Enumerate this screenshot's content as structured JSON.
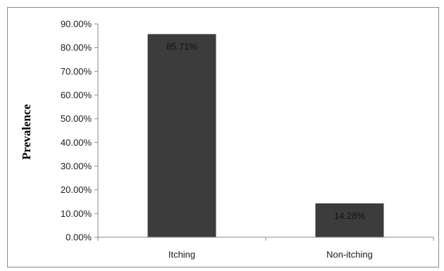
{
  "chart_data": {
    "type": "bar",
    "title": "",
    "xlabel": "",
    "ylabel": "Prevalence",
    "categories": [
      "Itching",
      "Non-itching"
    ],
    "values": [
      85.71,
      14.28
    ],
    "data_labels": [
      "85.71%",
      "14.28%"
    ],
    "ylim": [
      0,
      90
    ],
    "yticks": [
      0,
      10,
      20,
      30,
      40,
      50,
      60,
      70,
      80,
      90
    ],
    "ytick_labels": [
      "0.00%",
      "10.00%",
      "20.00%",
      "30.00%",
      "40.00%",
      "50.00%",
      "60.00%",
      "70.00%",
      "80.00%",
      "90.00%"
    ],
    "grid": false,
    "legend": "none",
    "bar_color": "#3c3c3c",
    "axis_color": "#8a8a8a"
  }
}
